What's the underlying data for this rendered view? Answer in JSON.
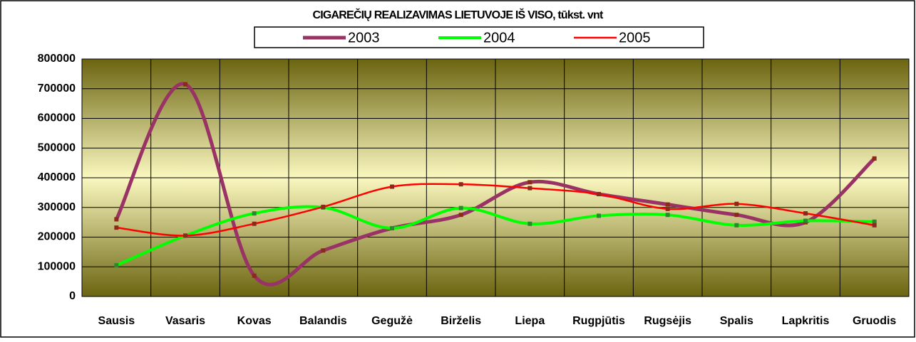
{
  "chart_data": {
    "type": "line",
    "title": "CIGAREČIŲ REALIZAVIMAS LIETUVOJE IŠ VISO, tūkst. vnt",
    "categories": [
      "Sausis",
      "Vasaris",
      "Kovas",
      "Balandis",
      "Gegužė",
      "Birželis",
      "Liepa",
      "Rugpjūtis",
      "Rugsėjis",
      "Spalis",
      "Lapkritis",
      "Gruodis"
    ],
    "series": [
      {
        "name": "2003",
        "color": "#993366",
        "values": [
          260000,
          715000,
          70000,
          155000,
          230000,
          275000,
          385000,
          345000,
          310000,
          275000,
          250000,
          465000
        ]
      },
      {
        "name": "2004",
        "color": "#00ff00",
        "values": [
          105000,
          205000,
          280000,
          300000,
          230000,
          298000,
          245000,
          272000,
          275000,
          240000,
          255000,
          252000
        ]
      },
      {
        "name": "2005",
        "color": "#ff0000",
        "values": [
          232000,
          205000,
          245000,
          302000,
          370000,
          378000,
          365000,
          345000,
          295000,
          312000,
          280000,
          240000
        ]
      }
    ],
    "ylim": [
      0,
      800000
    ],
    "yticks": [
      0,
      100000,
      200000,
      300000,
      400000,
      500000,
      600000,
      700000,
      800000
    ],
    "grid": true
  }
}
